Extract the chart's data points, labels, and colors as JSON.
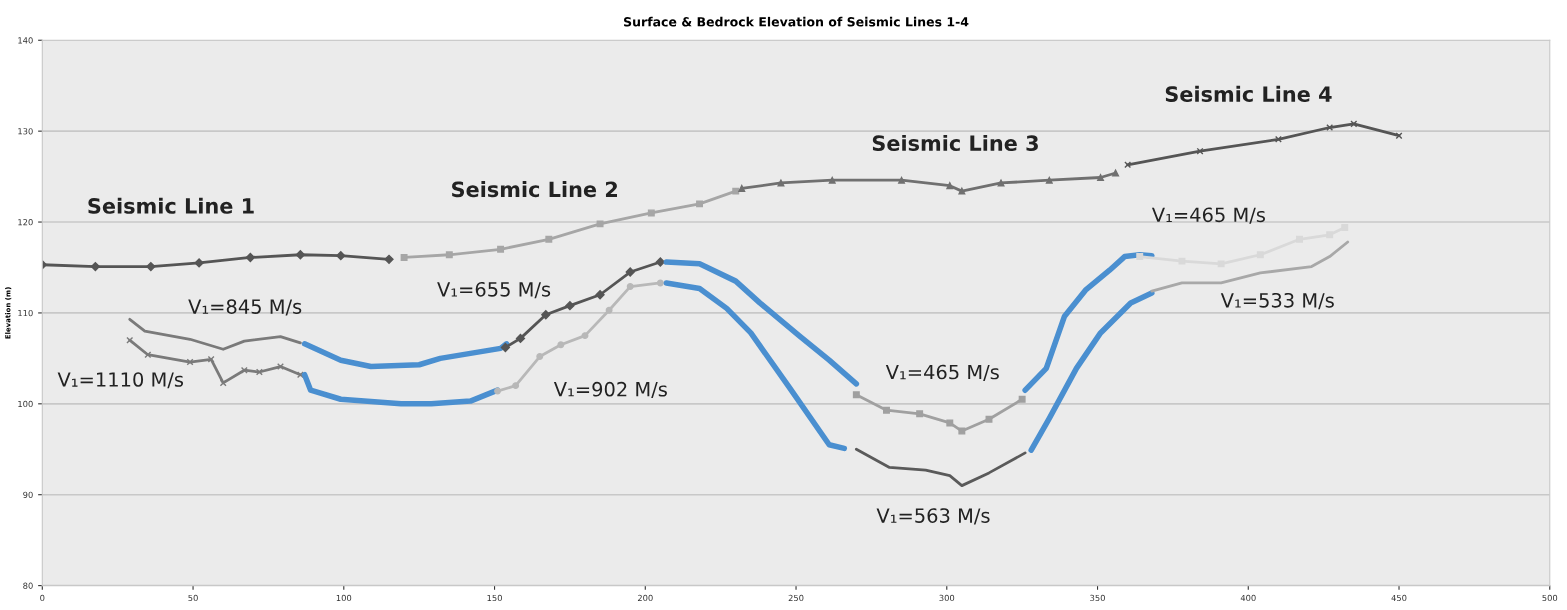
{
  "chart_data": {
    "type": "line",
    "title": "Surface & Bedrock Elevation of Seismic Lines 1-4",
    "ylabel": "Elevation (m)",
    "xlim": [
      0,
      500
    ],
    "xticks": [
      0,
      50,
      100,
      150,
      200,
      250,
      300,
      350,
      400,
      450,
      500
    ],
    "ylim": [
      80,
      140
    ],
    "yticks": [
      80,
      90,
      100,
      110,
      120,
      130,
      140
    ],
    "grid": "y",
    "series": [
      {
        "name": "Seismic Line 1",
        "color": "#555555",
        "marker": "diamond",
        "x": [
          0,
          17.6,
          36,
          52,
          69,
          85.6,
          99,
          115
        ],
        "values": [
          115.3,
          115.1,
          115.1,
          115.5,
          116.1,
          116.4,
          116.3,
          115.9
        ]
      },
      {
        "name": "Seismic Line 2",
        "color": "#a6a6a6",
        "marker": "square",
        "x": [
          120,
          135,
          152,
          168,
          185,
          202,
          218,
          230
        ],
        "values": [
          116.1,
          116.4,
          117.0,
          118.1,
          119.8,
          121.0,
          122.0,
          123.4
        ]
      },
      {
        "name": "Seismic Line 3",
        "color": "#707070",
        "marker": "triangle",
        "x": [
          232,
          245,
          262,
          285,
          301,
          305,
          318,
          334,
          351,
          356
        ],
        "values": [
          123.7,
          124.3,
          124.6,
          124.6,
          124.0,
          123.4,
          124.3,
          124.6,
          124.9,
          125.4
        ]
      },
      {
        "name": "Seismic Line 4",
        "color": "#555555",
        "marker": "cross",
        "x": [
          360,
          384,
          410,
          427,
          435,
          450
        ],
        "values": [
          126.3,
          127.8,
          129.1,
          130.4,
          130.8,
          129.5
        ]
      },
      {
        "name": "V₁=845 M/s",
        "color": "#7a7a7a",
        "marker": "none",
        "x": [
          29,
          34,
          49,
          60,
          67,
          79,
          85.6
        ],
        "values": [
          109.3,
          108.0,
          107.1,
          106.0,
          106.9,
          107.4,
          106.7
        ]
      },
      {
        "color": "#4a8fd0",
        "marker": "none",
        "x": [
          87,
          99,
          109,
          125,
          132,
          152,
          154
        ],
        "values": [
          106.6,
          104.8,
          104.1,
          104.3,
          105.0,
          106.1,
          106.6
        ]
      },
      {
        "name": "V₁=655 M/s",
        "color": "#555555",
        "marker": "diamond",
        "x": [
          153.6,
          158.6,
          167,
          175,
          185,
          195,
          205
        ],
        "values": [
          106.2,
          107.2,
          109.8,
          110.8,
          112.0,
          114.5,
          115.6
        ]
      },
      {
        "color": "#4a8fd0",
        "marker": "none",
        "x": [
          207,
          218,
          230,
          238,
          251,
          261,
          270
        ],
        "values": [
          115.6,
          115.4,
          113.5,
          111.1,
          107.5,
          104.8,
          102.2
        ]
      },
      {
        "name": "V₁=465 M/s",
        "color": "#a0a0a0",
        "marker": "square",
        "x": [
          270,
          280,
          291,
          301,
          305,
          314,
          325
        ],
        "values": [
          101.0,
          99.3,
          98.9,
          97.9,
          97.0,
          98.3,
          100.5
        ]
      },
      {
        "color": "#4a8fd0",
        "marker": "none",
        "x": [
          326,
          333,
          339,
          346,
          354,
          359,
          364,
          368
        ],
        "values": [
          101.5,
          103.9,
          109.6,
          112.5,
          114.7,
          116.2,
          116.4,
          116.3
        ]
      },
      {
        "name": "V₁=465 M/s",
        "color": "#d9d9d9",
        "marker": "square",
        "x": [
          364,
          378,
          391,
          404,
          417,
          427,
          432
        ],
        "values": [
          116.2,
          115.7,
          115.4,
          116.4,
          118.1,
          118.6,
          119.4
        ]
      },
      {
        "name": "V₁=1110 M/s",
        "color": "#7a7a7a",
        "marker": "cross",
        "x": [
          29,
          35,
          49,
          56,
          60,
          67,
          72,
          79,
          85.6
        ],
        "values": [
          107.0,
          105.4,
          104.6,
          104.9,
          102.3,
          103.7,
          103.5,
          104.1,
          103.2
        ]
      },
      {
        "color": "#4a8fd0",
        "marker": "none",
        "x": [
          87,
          89,
          99,
          119,
          129,
          142,
          151
        ],
        "values": [
          103.2,
          101.5,
          100.5,
          100.0,
          100.0,
          100.3,
          101.5
        ]
      },
      {
        "name": "V₁=902 M/s",
        "color": "#b8b8b8",
        "marker": "circle",
        "x": [
          151,
          157,
          165,
          172,
          180,
          188,
          195,
          205
        ],
        "values": [
          101.4,
          102.0,
          105.2,
          106.5,
          107.5,
          110.3,
          112.9,
          113.3
        ]
      },
      {
        "color": "#4a8fd0",
        "marker": "none",
        "x": [
          207,
          218,
          227,
          235,
          248,
          261,
          266
        ],
        "values": [
          113.3,
          112.7,
          110.5,
          107.8,
          101.7,
          95.5,
          95.1
        ]
      },
      {
        "name": "V₁=563 M/s",
        "color": "#5a5a5a",
        "marker": "none",
        "x": [
          270,
          281,
          293,
          301,
          305,
          314,
          326
        ],
        "values": [
          95.0,
          93.0,
          92.7,
          92.1,
          91.0,
          92.4,
          94.6
        ]
      },
      {
        "color": "#4a8fd0",
        "marker": "none",
        "x": [
          328,
          334,
          343,
          351,
          361,
          368
        ],
        "values": [
          94.9,
          98.4,
          103.9,
          107.8,
          111.1,
          112.2
        ]
      },
      {
        "name": "V₁=533 M/s",
        "color": "#a8a8a8",
        "marker": "none",
        "x": [
          368,
          378,
          391,
          404,
          421,
          427,
          433
        ],
        "values": [
          112.4,
          113.3,
          113.3,
          114.4,
          115.1,
          116.2,
          117.8
        ]
      }
    ]
  }
}
